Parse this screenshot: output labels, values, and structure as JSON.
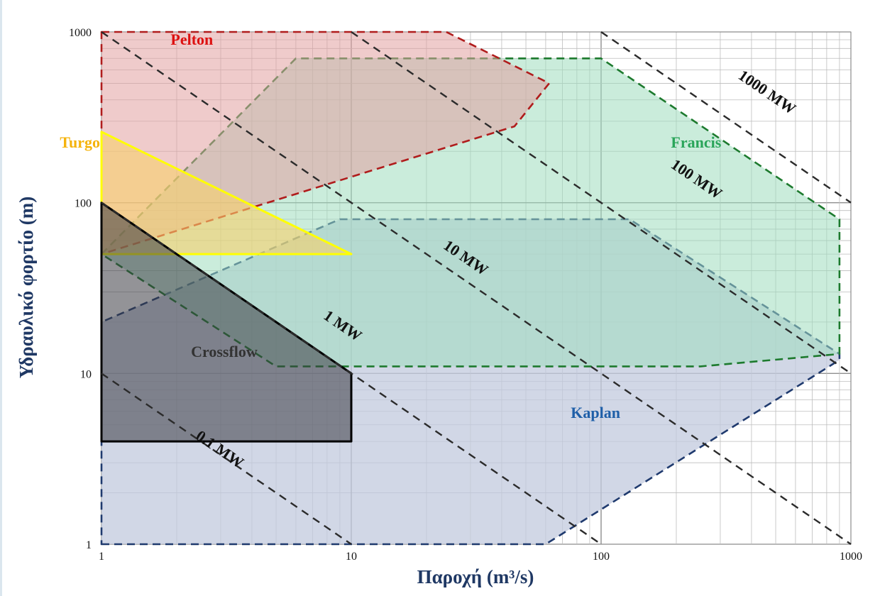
{
  "chart_data": {
    "type": "area",
    "xlabel": "Παροχή (m³/s)",
    "ylabel": "Υδραυλικό φορτίο (m)",
    "xscale": "log",
    "yscale": "log",
    "xlim": [
      1,
      1000
    ],
    "ylim": [
      1,
      1000
    ],
    "grid": true,
    "x_ticks": [
      "1",
      "10",
      "100",
      "1000"
    ],
    "y_ticks": [
      "1",
      "10",
      "100",
      "1000"
    ],
    "regions": [
      {
        "name": "Kaplan",
        "fill": "#c2c9dd",
        "stroke": "#1f3a6e",
        "dashed": true,
        "points": [
          [
            1,
            1
          ],
          [
            60,
            1
          ],
          [
            900,
            12
          ],
          [
            900,
            13
          ],
          [
            130,
            80
          ],
          [
            9,
            80
          ],
          [
            1,
            20
          ]
        ],
        "label_at": [
          95,
          5.5
        ],
        "label_color": "#1f5fa8"
      },
      {
        "name": "Francis",
        "fill": "#9fdcbd",
        "stroke": "#1d7a2e",
        "dashed": true,
        "points": [
          [
            1,
            50
          ],
          [
            6,
            700
          ],
          [
            100,
            700
          ],
          [
            900,
            80
          ],
          [
            900,
            13
          ],
          [
            250,
            11
          ],
          [
            5,
            11
          ]
        ],
        "label_at": [
          240,
          210
        ],
        "label_color": "#2aa55a"
      },
      {
        "name": "Pelton",
        "fill": "#e2a0a0",
        "stroke": "#b01c1c",
        "dashed": true,
        "points": [
          [
            1,
            1000
          ],
          [
            24,
            1000
          ],
          [
            62,
            500
          ],
          [
            45,
            280
          ],
          [
            1,
            50
          ]
        ],
        "label_at": [
          2.3,
          840
        ],
        "label_color": "#dd1111"
      },
      {
        "name": "Turgo",
        "fill": "#f7d06a",
        "stroke": "#ffff00",
        "dashed": false,
        "points": [
          [
            1,
            50
          ],
          [
            1,
            260
          ],
          [
            10,
            50
          ]
        ],
        "label_at": [
          0.82,
          210
        ],
        "label_color": "#f5b30c"
      },
      {
        "name": "Crossflow",
        "fill": "#3a3a42",
        "stroke": "#000000",
        "dashed": false,
        "points": [
          [
            1,
            4
          ],
          [
            1,
            100
          ],
          [
            10,
            10
          ],
          [
            10,
            4
          ]
        ],
        "label_at": [
          3.1,
          12.5
        ],
        "label_color": "#333333"
      }
    ],
    "power_lines": [
      {
        "label": "0.1 MW",
        "k": 10,
        "label_at": [
          2.9,
          3.4
        ]
      },
      {
        "label": "1 MW",
        "k": 100,
        "label_at": [
          9.0,
          18
        ]
      },
      {
        "label": "10 MW",
        "k": 1000,
        "label_at": [
          28,
          45
        ]
      },
      {
        "label": "100 MW",
        "k": 10000,
        "label_at": [
          235,
          130
        ]
      },
      {
        "label": "1000 MW",
        "k": 100000,
        "label_at": [
          450,
          420
        ]
      }
    ]
  }
}
